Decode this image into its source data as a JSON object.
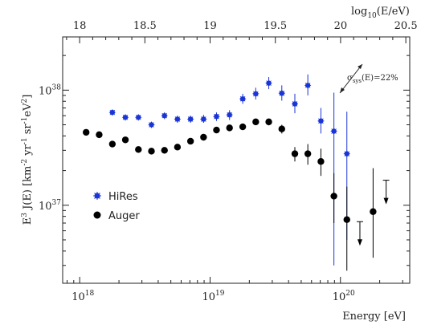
{
  "chart_data": {
    "type": "scatter",
    "x_scale": "log",
    "y_scale": "log",
    "xlim": [
      7.4e+17,
      3.4e+20
    ],
    "ylim": [
      2.1e+36,
      2.9e+38
    ],
    "top_xlim": [
      17.87,
      20.53
    ],
    "xlabel": {
      "base": "Energy",
      "unit": "[eV]"
    },
    "ylabel": {
      "prefix": "E",
      "sup1": "3",
      "mid": " J(E) [km",
      "sup2": "-2",
      "mid2": " yr",
      "sup3": "-1",
      "mid3": " sr",
      "sup4": "-1",
      "mid4": "eV",
      "sup5": "2",
      "suffix": "]"
    },
    "top_label": {
      "prefix": "log",
      "sub": "10",
      "suffix": "(E/eV)"
    },
    "bottom_ticks": [
      {
        "value": 1e+18,
        "base": "10",
        "exp": "18"
      },
      {
        "value": 1e+19,
        "base": "10",
        "exp": "19"
      },
      {
        "value": 1e+20,
        "base": "10",
        "exp": "20"
      }
    ],
    "top_ticks": [
      "18",
      "18.5",
      "19",
      "19.5",
      "20",
      "20.5"
    ],
    "left_ticks": [
      {
        "value": 1e+37,
        "base": "10",
        "exp": "37"
      },
      {
        "value": 1e+38,
        "base": "10",
        "exp": "38"
      }
    ],
    "annotation": {
      "label": "σ",
      "sub": "sys",
      "suffix": "(E)=22%"
    },
    "legend_position": "center-left",
    "series": [
      {
        "name": "HiRes",
        "color": "#1a35d6",
        "marker": "asterisk-circle",
        "points": [
          {
            "x": 1.78e+18,
            "y": 6.4e+37,
            "lo": 6.1e+37,
            "hi": 6.7e+37
          },
          {
            "x": 2.24e+18,
            "y": 5.8e+37,
            "lo": 5.5e+37,
            "hi": 6.1e+37
          },
          {
            "x": 2.82e+18,
            "y": 5.8e+37,
            "lo": 5.5e+37,
            "hi": 6.1e+37
          },
          {
            "x": 3.55e+18,
            "y": 5e+37,
            "lo": 4.7e+37,
            "hi": 5.3e+37
          },
          {
            "x": 4.47e+18,
            "y": 6e+37,
            "lo": 5.6e+37,
            "hi": 6.4e+37
          },
          {
            "x": 5.62e+18,
            "y": 5.6e+37,
            "lo": 5.2e+37,
            "hi": 6e+37
          },
          {
            "x": 7.08e+18,
            "y": 5.6e+37,
            "lo": 5.2e+37,
            "hi": 6e+37
          },
          {
            "x": 8.91e+18,
            "y": 5.6e+37,
            "lo": 5.2e+37,
            "hi": 6.1e+37
          },
          {
            "x": 1.12e+19,
            "y": 5.9e+37,
            "lo": 5.4e+37,
            "hi": 6.4e+37
          },
          {
            "x": 1.41e+19,
            "y": 6.1e+37,
            "lo": 5.5e+37,
            "hi": 6.7e+37
          },
          {
            "x": 1.78e+19,
            "y": 8.4e+37,
            "lo": 7.6e+37,
            "hi": 9.3e+37
          },
          {
            "x": 2.24e+19,
            "y": 9.3e+37,
            "lo": 8.3e+37,
            "hi": 1.05e+38
          },
          {
            "x": 2.82e+19,
            "y": 1.15e+38,
            "lo": 1.02e+38,
            "hi": 1.3e+38
          },
          {
            "x": 3.55e+19,
            "y": 9.4e+37,
            "lo": 8.1e+37,
            "hi": 1.1e+38
          },
          {
            "x": 4.47e+19,
            "y": 7.6e+37,
            "lo": 6.3e+37,
            "hi": 9.3e+37
          },
          {
            "x": 5.62e+19,
            "y": 1.1e+38,
            "lo": 9e+37,
            "hi": 1.37e+38
          },
          {
            "x": 7.08e+19,
            "y": 5.4e+37,
            "lo": 4.2e+37,
            "hi": 7e+37
          },
          {
            "x": 8.91e+19,
            "y": 4.4e+37,
            "lo": 3e+36,
            "hi": 9.5e+37
          },
          {
            "x": 1.12e+20,
            "y": 2.8e+37,
            "lo": 5e+36,
            "hi": 6.5e+37
          }
        ]
      },
      {
        "name": "Auger",
        "color": "#000000",
        "marker": "filled-circle",
        "points": [
          {
            "x": 1.12e+18,
            "y": 4.3e+37,
            "lo": 4.1e+37,
            "hi": 4.5e+37
          },
          {
            "x": 1.41e+18,
            "y": 4.1e+37,
            "lo": 3.9e+37,
            "hi": 4.3e+37
          },
          {
            "x": 1.78e+18,
            "y": 3.4e+37,
            "lo": 3.25e+37,
            "hi": 3.55e+37
          },
          {
            "x": 2.24e+18,
            "y": 3.7e+37,
            "lo": 3.55e+37,
            "hi": 3.85e+37
          },
          {
            "x": 2.82e+18,
            "y": 3.05e+37,
            "lo": 2.95e+37,
            "hi": 3.15e+37
          },
          {
            "x": 3.55e+18,
            "y": 2.95e+37,
            "lo": 2.85e+37,
            "hi": 3.05e+37
          },
          {
            "x": 4.47e+18,
            "y": 3e+37,
            "lo": 2.9e+37,
            "hi": 3.1e+37
          },
          {
            "x": 5.62e+18,
            "y": 3.2e+37,
            "lo": 3.1e+37,
            "hi": 3.3e+37
          },
          {
            "x": 7.08e+18,
            "y": 3.6e+37,
            "lo": 3.45e+37,
            "hi": 3.75e+37
          },
          {
            "x": 8.91e+18,
            "y": 3.9e+37,
            "lo": 3.75e+37,
            "hi": 4.05e+37
          },
          {
            "x": 1.12e+19,
            "y": 4.5e+37,
            "lo": 4.3e+37,
            "hi": 4.7e+37
          },
          {
            "x": 1.41e+19,
            "y": 4.7e+37,
            "lo": 4.5e+37,
            "hi": 4.9e+37
          },
          {
            "x": 1.78e+19,
            "y": 4.8e+37,
            "lo": 4.55e+37,
            "hi": 5.05e+37
          },
          {
            "x": 2.24e+19,
            "y": 5.3e+37,
            "lo": 5e+37,
            "hi": 5.6e+37
          },
          {
            "x": 2.82e+19,
            "y": 5.3e+37,
            "lo": 4.95e+37,
            "hi": 5.65e+37
          },
          {
            "x": 3.55e+19,
            "y": 4.6e+37,
            "lo": 4.2e+37,
            "hi": 5e+37
          },
          {
            "x": 4.47e+19,
            "y": 2.8e+37,
            "lo": 2.4e+37,
            "hi": 3.2e+37
          },
          {
            "x": 5.62e+19,
            "y": 2.8e+37,
            "lo": 2.25e+37,
            "hi": 3.4e+37
          },
          {
            "x": 7.08e+19,
            "y": 2.4e+37,
            "lo": 1.8e+37,
            "hi": 3.1e+37
          },
          {
            "x": 8.91e+19,
            "y": 1.2e+37,
            "lo": 7e+36,
            "hi": 1.9e+37
          },
          {
            "x": 1.12e+20,
            "y": 7.5e+36,
            "lo": 2.7e+36,
            "hi": 1.45e+37
          },
          {
            "x": 1.41e+20,
            "y": 7.2e+36,
            "upper_limit": true
          },
          {
            "x": 1.78e+20,
            "y": 8.8e+36,
            "lo": 3.5e+36,
            "hi": 2.1e+37
          },
          {
            "x": 2.24e+20,
            "y": 1.65e+37,
            "upper_limit": true
          }
        ]
      }
    ]
  }
}
